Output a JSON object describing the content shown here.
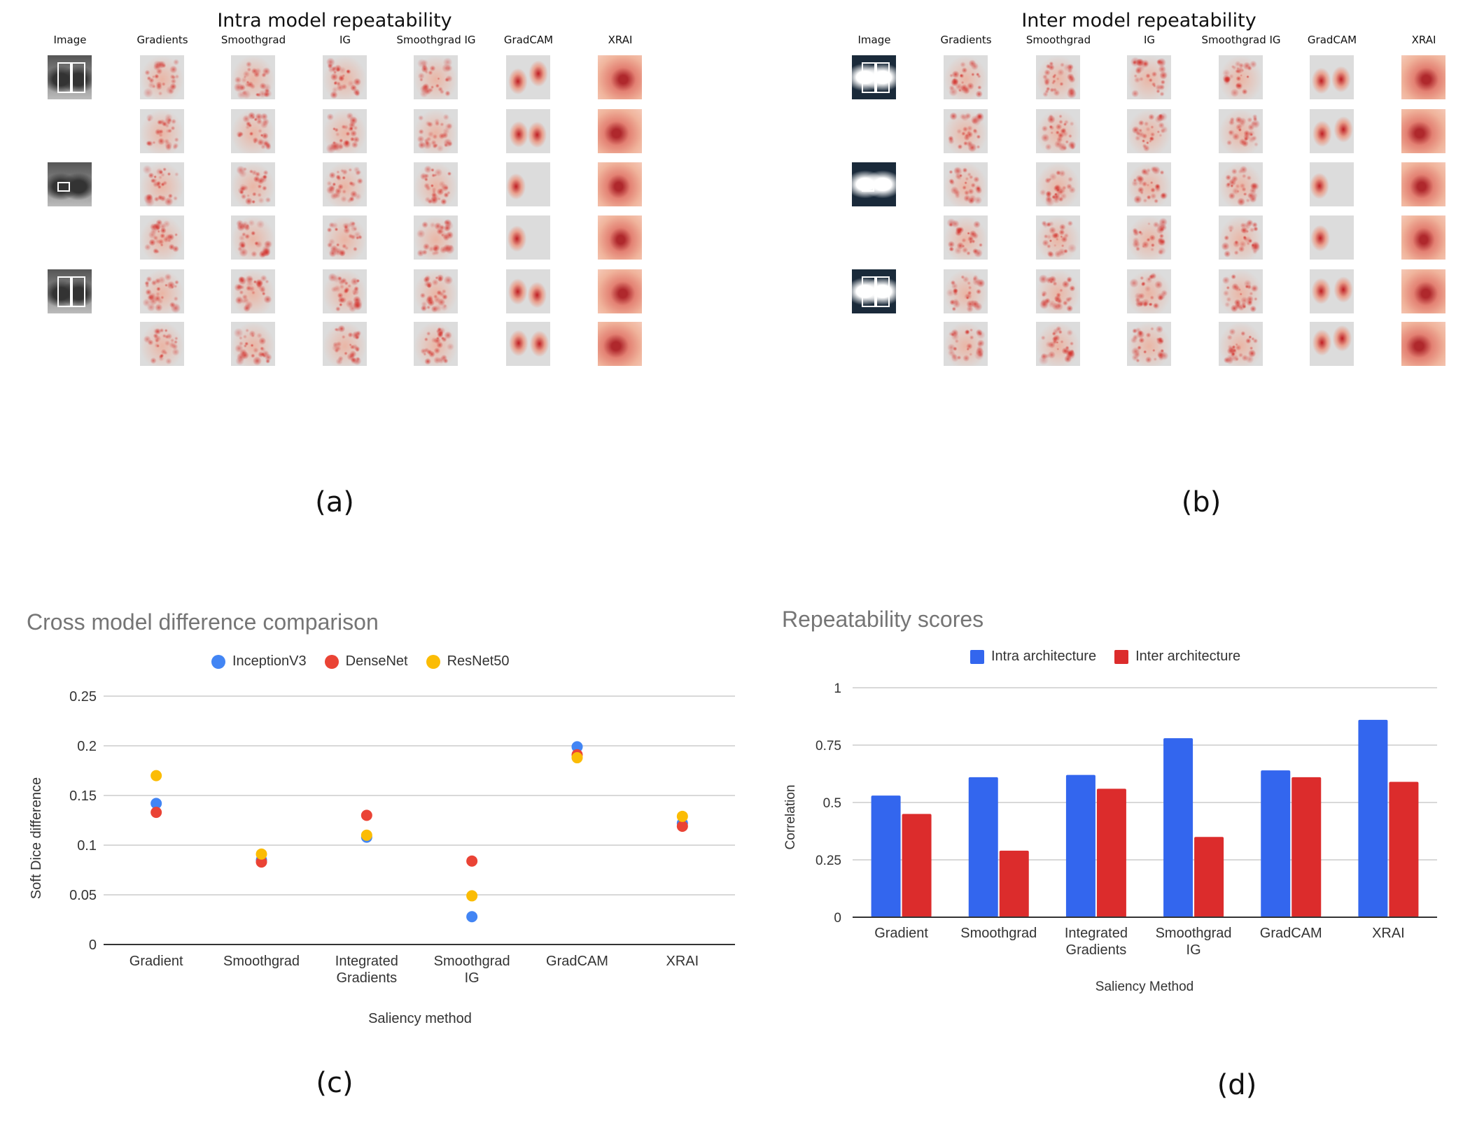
{
  "panel_a": {
    "title": "Intra model repeatability",
    "columns": [
      "Image",
      "Gradients",
      "Smoothgrad",
      "IG",
      "Smoothgrad IG",
      "GradCAM",
      "XRAI"
    ],
    "label": "(a)"
  },
  "panel_b": {
    "title": "Inter model repeatability",
    "columns": [
      "Image",
      "Gradients",
      "Smoothgrad",
      "IG",
      "Smoothgrad IG",
      "GradCAM",
      "XRAI"
    ],
    "label": "(b)"
  },
  "heatmap_color": "#d7301f",
  "chart_data": [
    {
      "type": "scatter",
      "title": "Cross model difference comparison",
      "xlabel": "Saliency method",
      "ylabel": "Soft Dice difference",
      "categories": [
        "Gradient",
        "Smoothgrad",
        "Integrated Gradients",
        "Smoothgrad IG",
        "GradCAM",
        "XRAI"
      ],
      "yticks": [
        "0",
        "0.05",
        "0.1",
        "0.15",
        "0.2",
        "0.25"
      ],
      "ylim": [
        0,
        0.25
      ],
      "grid": true,
      "legend": "top",
      "series": [
        {
          "name": "InceptionV3",
          "color": "#4285f4",
          "values": [
            0.142,
            0.085,
            0.108,
            0.028,
            0.199,
            0.122
          ]
        },
        {
          "name": "DenseNet",
          "color": "#ea4335",
          "values": [
            0.133,
            0.083,
            0.13,
            0.084,
            0.191,
            0.119
          ]
        },
        {
          "name": "ResNet50",
          "color": "#fbbc04",
          "values": [
            0.17,
            0.091,
            0.11,
            0.049,
            0.188,
            0.129
          ]
        }
      ],
      "label": "(c)"
    },
    {
      "type": "bar",
      "title": "Repeatability scores",
      "xlabel": "Saliency Method",
      "ylabel": "Correlation",
      "categories": [
        "Gradient",
        "Smoothgrad",
        "Integrated Gradients",
        "Smoothgrad IG",
        "GradCAM",
        "XRAI"
      ],
      "yticks": [
        "0",
        "0.25",
        "0.5",
        "0.75",
        "1"
      ],
      "ylim": [
        0,
        1
      ],
      "grid": true,
      "legend": "top",
      "series": [
        {
          "name": "Intra architecture",
          "color": "#3366ee",
          "values": [
            0.53,
            0.61,
            0.62,
            0.78,
            0.64,
            0.86
          ]
        },
        {
          "name": "Inter architecture",
          "color": "#dc2c2c",
          "values": [
            0.45,
            0.29,
            0.56,
            0.35,
            0.61,
            0.59
          ]
        }
      ],
      "label": "(d)"
    }
  ]
}
